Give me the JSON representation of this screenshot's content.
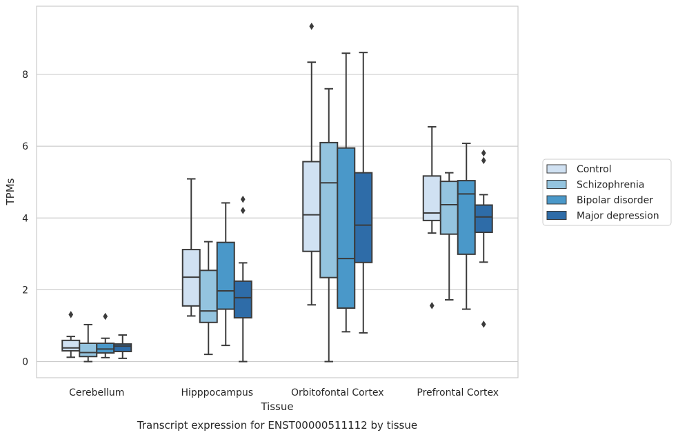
{
  "chart_data": {
    "type": "box",
    "caption": "Transcript expression for ENST00000511112 by tissue",
    "xlabel": "Tissue",
    "ylabel": "TPMs",
    "ylim": [
      -0.45,
      9.9
    ],
    "yticks": [
      0,
      2,
      4,
      6,
      8
    ],
    "grid": true,
    "legend_position": "right",
    "categories": [
      "Cerebellum",
      "Hipppocampus",
      "Orbitofontal Cortex",
      "Prefrontal Cortex"
    ],
    "series": [
      {
        "name": "Control",
        "color": "#d0e1f2",
        "boxes": [
          {
            "whislo": 0.12,
            "q1": 0.3,
            "med": 0.38,
            "q3": 0.59,
            "whishi": 0.7,
            "fliers": [
              1.31
            ]
          },
          {
            "whislo": 1.27,
            "q1": 1.55,
            "med": 2.35,
            "q3": 3.12,
            "whishi": 5.09,
            "fliers": []
          },
          {
            "whislo": 1.58,
            "q1": 3.07,
            "med": 4.09,
            "q3": 5.57,
            "whishi": 8.34,
            "fliers": [
              9.34
            ]
          },
          {
            "whislo": 3.58,
            "q1": 3.93,
            "med": 4.14,
            "q3": 5.17,
            "whishi": 6.54,
            "fliers": [
              1.56
            ]
          }
        ]
      },
      {
        "name": "Schizophrenia",
        "color": "#94c4df",
        "boxes": [
          {
            "whislo": 0.0,
            "q1": 0.14,
            "med": 0.25,
            "q3": 0.51,
            "whishi": 1.03,
            "fliers": []
          },
          {
            "whislo": 0.2,
            "q1": 1.09,
            "med": 1.41,
            "q3": 2.54,
            "whishi": 3.34,
            "fliers": []
          },
          {
            "whislo": 0.0,
            "q1": 2.34,
            "med": 4.98,
            "q3": 6.1,
            "whishi": 7.6,
            "fliers": []
          },
          {
            "whislo": 1.72,
            "q1": 3.55,
            "med": 4.37,
            "q3": 5.02,
            "whishi": 5.26,
            "fliers": []
          }
        ]
      },
      {
        "name": "Bipolar disorder",
        "color": "#4a98c9",
        "boxes": [
          {
            "whislo": 0.11,
            "q1": 0.24,
            "med": 0.35,
            "q3": 0.51,
            "whishi": 0.65,
            "fliers": [
              1.26
            ]
          },
          {
            "whislo": 0.45,
            "q1": 1.46,
            "med": 1.97,
            "q3": 3.32,
            "whishi": 4.42,
            "fliers": []
          },
          {
            "whislo": 0.83,
            "q1": 1.49,
            "med": 2.87,
            "q3": 5.95,
            "whishi": 8.59,
            "fliers": []
          },
          {
            "whislo": 1.46,
            "q1": 2.99,
            "med": 4.67,
            "q3": 5.04,
            "whishi": 6.08,
            "fliers": []
          }
        ]
      },
      {
        "name": "Major depression",
        "color": "#2e6ca8",
        "boxes": [
          {
            "whislo": 0.09,
            "q1": 0.28,
            "med": 0.43,
            "q3": 0.49,
            "whishi": 0.74,
            "fliers": []
          },
          {
            "whislo": 0.0,
            "q1": 1.22,
            "med": 1.78,
            "q3": 2.24,
            "whishi": 2.75,
            "fliers": [
              4.21,
              4.52
            ]
          },
          {
            "whislo": 0.8,
            "q1": 2.76,
            "med": 3.8,
            "q3": 5.26,
            "whishi": 8.61,
            "fliers": []
          },
          {
            "whislo": 2.77,
            "q1": 3.6,
            "med": 4.03,
            "q3": 4.36,
            "whishi": 4.65,
            "fliers": [
              1.04,
              5.6,
              5.81
            ]
          }
        ]
      }
    ]
  }
}
